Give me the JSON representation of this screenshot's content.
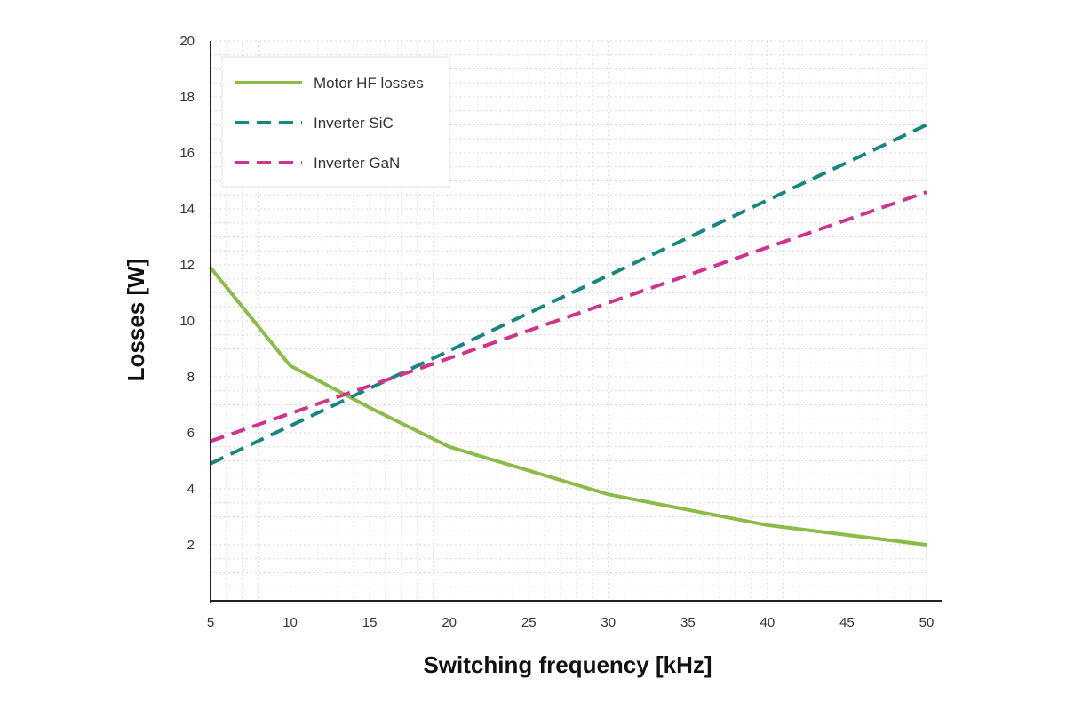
{
  "chart_data": {
    "type": "line",
    "title": "",
    "xlabel": "Switching frequency [kHz]",
    "ylabel": "Losses [W]",
    "xlim": [
      5,
      50
    ],
    "ylim": [
      0,
      20
    ],
    "x_ticks": [
      5,
      10,
      15,
      20,
      25,
      30,
      35,
      40,
      45,
      50
    ],
    "y_ticks": [
      2,
      4,
      6,
      8,
      10,
      12,
      14,
      16,
      18,
      20
    ],
    "grid": true,
    "legend_position": "top-left",
    "series": [
      {
        "name": "Motor HF losses",
        "style": "solid",
        "color": "#8cbb4a",
        "x": [
          5,
          10,
          15,
          20,
          30,
          40,
          50
        ],
        "y": [
          11.9,
          8.4,
          6.9,
          5.5,
          3.8,
          2.7,
          2.0
        ]
      },
      {
        "name": "Inverter SiC",
        "style": "dashed",
        "color": "#17877e",
        "x": [
          5,
          50
        ],
        "y": [
          4.9,
          17.0
        ]
      },
      {
        "name": "Inverter GaN",
        "style": "dashed",
        "color": "#d0338b",
        "x": [
          5,
          50
        ],
        "y": [
          5.7,
          14.6
        ]
      }
    ]
  }
}
